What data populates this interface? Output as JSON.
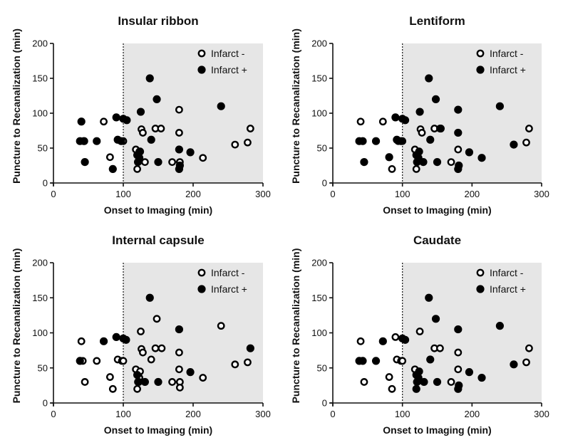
{
  "chart_data": [
    {
      "type": "scatter",
      "title": "Insular ribbon",
      "xlabel": "Onset to Imaging (min)",
      "ylabel": "Puncture to Recanalization (min)",
      "xlim": [
        0,
        300
      ],
      "ylim": [
        0,
        200
      ],
      "xticks": [
        0,
        100,
        200,
        300
      ],
      "yticks": [
        0,
        50,
        100,
        150,
        200
      ],
      "threshold_x": 100,
      "shaded_region": [
        100,
        300
      ],
      "legend": [
        "Infarct -",
        "Infarct +"
      ],
      "series": [
        {
          "name": "Infarct -",
          "marker": "open-circle",
          "points": [
            [
              43,
              60
            ],
            [
              72,
              88
            ],
            [
              81,
              37
            ],
            [
              100,
              60
            ],
            [
              118,
              48
            ],
            [
              120,
              20
            ],
            [
              123,
              45
            ],
            [
              126,
              77
            ],
            [
              128,
              72
            ],
            [
              131,
              30
            ],
            [
              146,
              78
            ],
            [
              154,
              78
            ],
            [
              170,
              30
            ],
            [
              180,
              105
            ],
            [
              180,
              72
            ],
            [
              181,
              30
            ],
            [
              214,
              36
            ],
            [
              260,
              55
            ],
            [
              278,
              58
            ],
            [
              282,
              78
            ]
          ]
        },
        {
          "name": "Infarct +",
          "marker": "filled-circle",
          "points": [
            [
              38,
              60
            ],
            [
              40,
              88
            ],
            [
              44,
              60
            ],
            [
              45,
              30
            ],
            [
              62,
              60
            ],
            [
              85,
              20
            ],
            [
              90,
              94
            ],
            [
              92,
              62
            ],
            [
              97,
              60
            ],
            [
              100,
              92
            ],
            [
              105,
              90
            ],
            [
              120,
              40
            ],
            [
              121,
              30
            ],
            [
              123,
              36
            ],
            [
              124,
              45
            ],
            [
              125,
              102
            ],
            [
              138,
              150
            ],
            [
              140,
              62
            ],
            [
              148,
              120
            ],
            [
              150,
              30
            ],
            [
              180,
              20
            ],
            [
              180,
              48
            ],
            [
              181,
              25
            ],
            [
              196,
              44
            ],
            [
              240,
              110
            ]
          ]
        }
      ]
    },
    {
      "type": "scatter",
      "title": "Lentiform",
      "xlabel": "Onset to Imaging (min)",
      "ylabel": "Puncture to Recanalization (min)",
      "xlim": [
        0,
        300
      ],
      "ylim": [
        0,
        200
      ],
      "xticks": [
        0,
        100,
        200,
        300
      ],
      "yticks": [
        0,
        50,
        100,
        150,
        200
      ],
      "threshold_x": 100,
      "shaded_region": [
        100,
        300
      ],
      "legend": [
        "Infarct -",
        "Infarct +"
      ],
      "series": [
        {
          "name": "Infarct -",
          "marker": "open-circle",
          "points": [
            [
              40,
              88
            ],
            [
              72,
              88
            ],
            [
              85,
              20
            ],
            [
              94,
              60
            ],
            [
              100,
              60
            ],
            [
              118,
              48
            ],
            [
              120,
              20
            ],
            [
              126,
              77
            ],
            [
              128,
              72
            ],
            [
              146,
              78
            ],
            [
              154,
              78
            ],
            [
              170,
              30
            ],
            [
              180,
              48
            ],
            [
              278,
              58
            ],
            [
              282,
              78
            ]
          ]
        },
        {
          "name": "Infarct +",
          "marker": "filled-circle",
          "points": [
            [
              38,
              60
            ],
            [
              43,
              60
            ],
            [
              45,
              30
            ],
            [
              62,
              60
            ],
            [
              81,
              37
            ],
            [
              90,
              94
            ],
            [
              92,
              62
            ],
            [
              98,
              60
            ],
            [
              100,
              92
            ],
            [
              104,
              90
            ],
            [
              120,
              40
            ],
            [
              121,
              30
            ],
            [
              123,
              36
            ],
            [
              124,
              45
            ],
            [
              125,
              102
            ],
            [
              130,
              30
            ],
            [
              138,
              150
            ],
            [
              140,
              62
            ],
            [
              148,
              120
            ],
            [
              150,
              30
            ],
            [
              155,
              78
            ],
            [
              180,
              105
            ],
            [
              180,
              72
            ],
            [
              180,
              20
            ],
            [
              181,
              25
            ],
            [
              196,
              44
            ],
            [
              214,
              36
            ],
            [
              240,
              110
            ],
            [
              260,
              55
            ]
          ]
        }
      ]
    },
    {
      "type": "scatter",
      "title": "Internal capsule",
      "xlabel": "Onset to Imaging (min)",
      "ylabel": "Puncture to Recanalization (min)",
      "xlim": [
        0,
        300
      ],
      "ylim": [
        0,
        200
      ],
      "xticks": [
        0,
        100,
        200,
        300
      ],
      "yticks": [
        0,
        50,
        100,
        150,
        200
      ],
      "threshold_x": 100,
      "shaded_region": [
        100,
        300
      ],
      "legend": [
        "Infarct -",
        "Infarct +"
      ],
      "series": [
        {
          "name": "Infarct -",
          "marker": "open-circle",
          "points": [
            [
              40,
              88
            ],
            [
              42,
              60
            ],
            [
              45,
              30
            ],
            [
              62,
              60
            ],
            [
              81,
              37
            ],
            [
              85,
              20
            ],
            [
              92,
              62
            ],
            [
              98,
              60
            ],
            [
              100,
              60
            ],
            [
              118,
              48
            ],
            [
              120,
              20
            ],
            [
              121,
              30
            ],
            [
              123,
              36
            ],
            [
              124,
              45
            ],
            [
              125,
              102
            ],
            [
              126,
              77
            ],
            [
              128,
              72
            ],
            [
              140,
              62
            ],
            [
              148,
              120
            ],
            [
              146,
              78
            ],
            [
              155,
              78
            ],
            [
              170,
              30
            ],
            [
              180,
              72
            ],
            [
              180,
              48
            ],
            [
              181,
              30
            ],
            [
              181,
              22
            ],
            [
              214,
              36
            ],
            [
              240,
              110
            ],
            [
              260,
              55
            ],
            [
              278,
              58
            ]
          ]
        },
        {
          "name": "Infarct +",
          "marker": "filled-circle",
          "points": [
            [
              38,
              60
            ],
            [
              72,
              88
            ],
            [
              90,
              94
            ],
            [
              100,
              92
            ],
            [
              104,
              90
            ],
            [
              120,
              40
            ],
            [
              122,
              30
            ],
            [
              131,
              30
            ],
            [
              138,
              150
            ],
            [
              150,
              30
            ],
            [
              180,
              105
            ],
            [
              196,
              44
            ],
            [
              282,
              78
            ]
          ]
        }
      ]
    },
    {
      "type": "scatter",
      "title": "Caudate",
      "xlabel": "Onset to Imaging (min)",
      "ylabel": "Puncture to Recanalization (min)",
      "xlim": [
        0,
        300
      ],
      "ylim": [
        0,
        200
      ],
      "xticks": [
        0,
        100,
        200,
        300
      ],
      "yticks": [
        0,
        50,
        100,
        150,
        200
      ],
      "threshold_x": 100,
      "shaded_region": [
        100,
        300
      ],
      "legend": [
        "Infarct -",
        "Infarct +"
      ],
      "series": [
        {
          "name": "Infarct -",
          "marker": "open-circle",
          "points": [
            [
              40,
              88
            ],
            [
              45,
              30
            ],
            [
              81,
              37
            ],
            [
              85,
              20
            ],
            [
              90,
              94
            ],
            [
              92,
              62
            ],
            [
              98,
              60
            ],
            [
              100,
              60
            ],
            [
              118,
              48
            ],
            [
              125,
              102
            ],
            [
              146,
              78
            ],
            [
              154,
              78
            ],
            [
              170,
              30
            ],
            [
              180,
              72
            ],
            [
              180,
              48
            ],
            [
              282,
              78
            ],
            [
              278,
              58
            ]
          ]
        },
        {
          "name": "Infarct +",
          "marker": "filled-circle",
          "points": [
            [
              38,
              60
            ],
            [
              43,
              60
            ],
            [
              62,
              60
            ],
            [
              72,
              88
            ],
            [
              100,
              92
            ],
            [
              104,
              90
            ],
            [
              120,
              20
            ],
            [
              120,
              40
            ],
            [
              121,
              30
            ],
            [
              123,
              36
            ],
            [
              124,
              45
            ],
            [
              131,
              30
            ],
            [
              138,
              150
            ],
            [
              140,
              62
            ],
            [
              148,
              120
            ],
            [
              150,
              30
            ],
            [
              180,
              105
            ],
            [
              180,
              20
            ],
            [
              181,
              25
            ],
            [
              196,
              44
            ],
            [
              214,
              36
            ],
            [
              240,
              110
            ],
            [
              260,
              55
            ]
          ]
        }
      ]
    }
  ]
}
